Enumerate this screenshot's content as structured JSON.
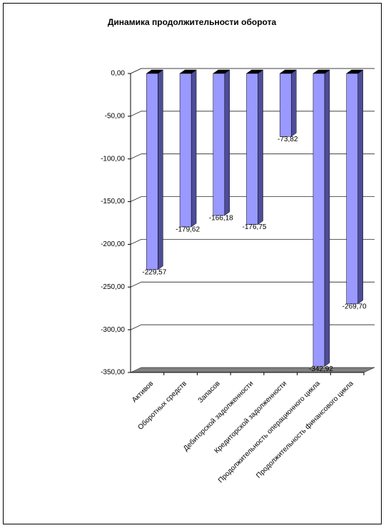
{
  "chart_data": {
    "type": "bar",
    "title": "Динамика продолжительности оборота",
    "categories": [
      "Активов",
      "Оборотных средств",
      "Запасов",
      "Дебиторской задолженности",
      "Кредиторской задолженности",
      "Продолжительность операционного цикла",
      "Продолжительность финансового цикла"
    ],
    "values": [
      -229.57,
      -179.62,
      -166.18,
      -176.75,
      -73.82,
      -342.92,
      -269.7
    ],
    "value_labels": [
      "-229,57",
      "-179,62",
      "-166,18",
      "-176,75",
      "-73,82",
      "-342,92",
      "-269,70"
    ],
    "color": "#9999ff",
    "ylim": [
      -350,
      0
    ],
    "yticks": [
      {
        "value": 0,
        "label": "0,00"
      },
      {
        "value": -50,
        "label": "-50,00"
      },
      {
        "value": -100,
        "label": "-100,00"
      },
      {
        "value": -150,
        "label": "-150,00"
      },
      {
        "value": -200,
        "label": "-200,00"
      },
      {
        "value": -250,
        "label": "-250,00"
      },
      {
        "value": -300,
        "label": "-300,00"
      },
      {
        "value": -350,
        "label": "-350,00"
      }
    ],
    "grid": true
  }
}
